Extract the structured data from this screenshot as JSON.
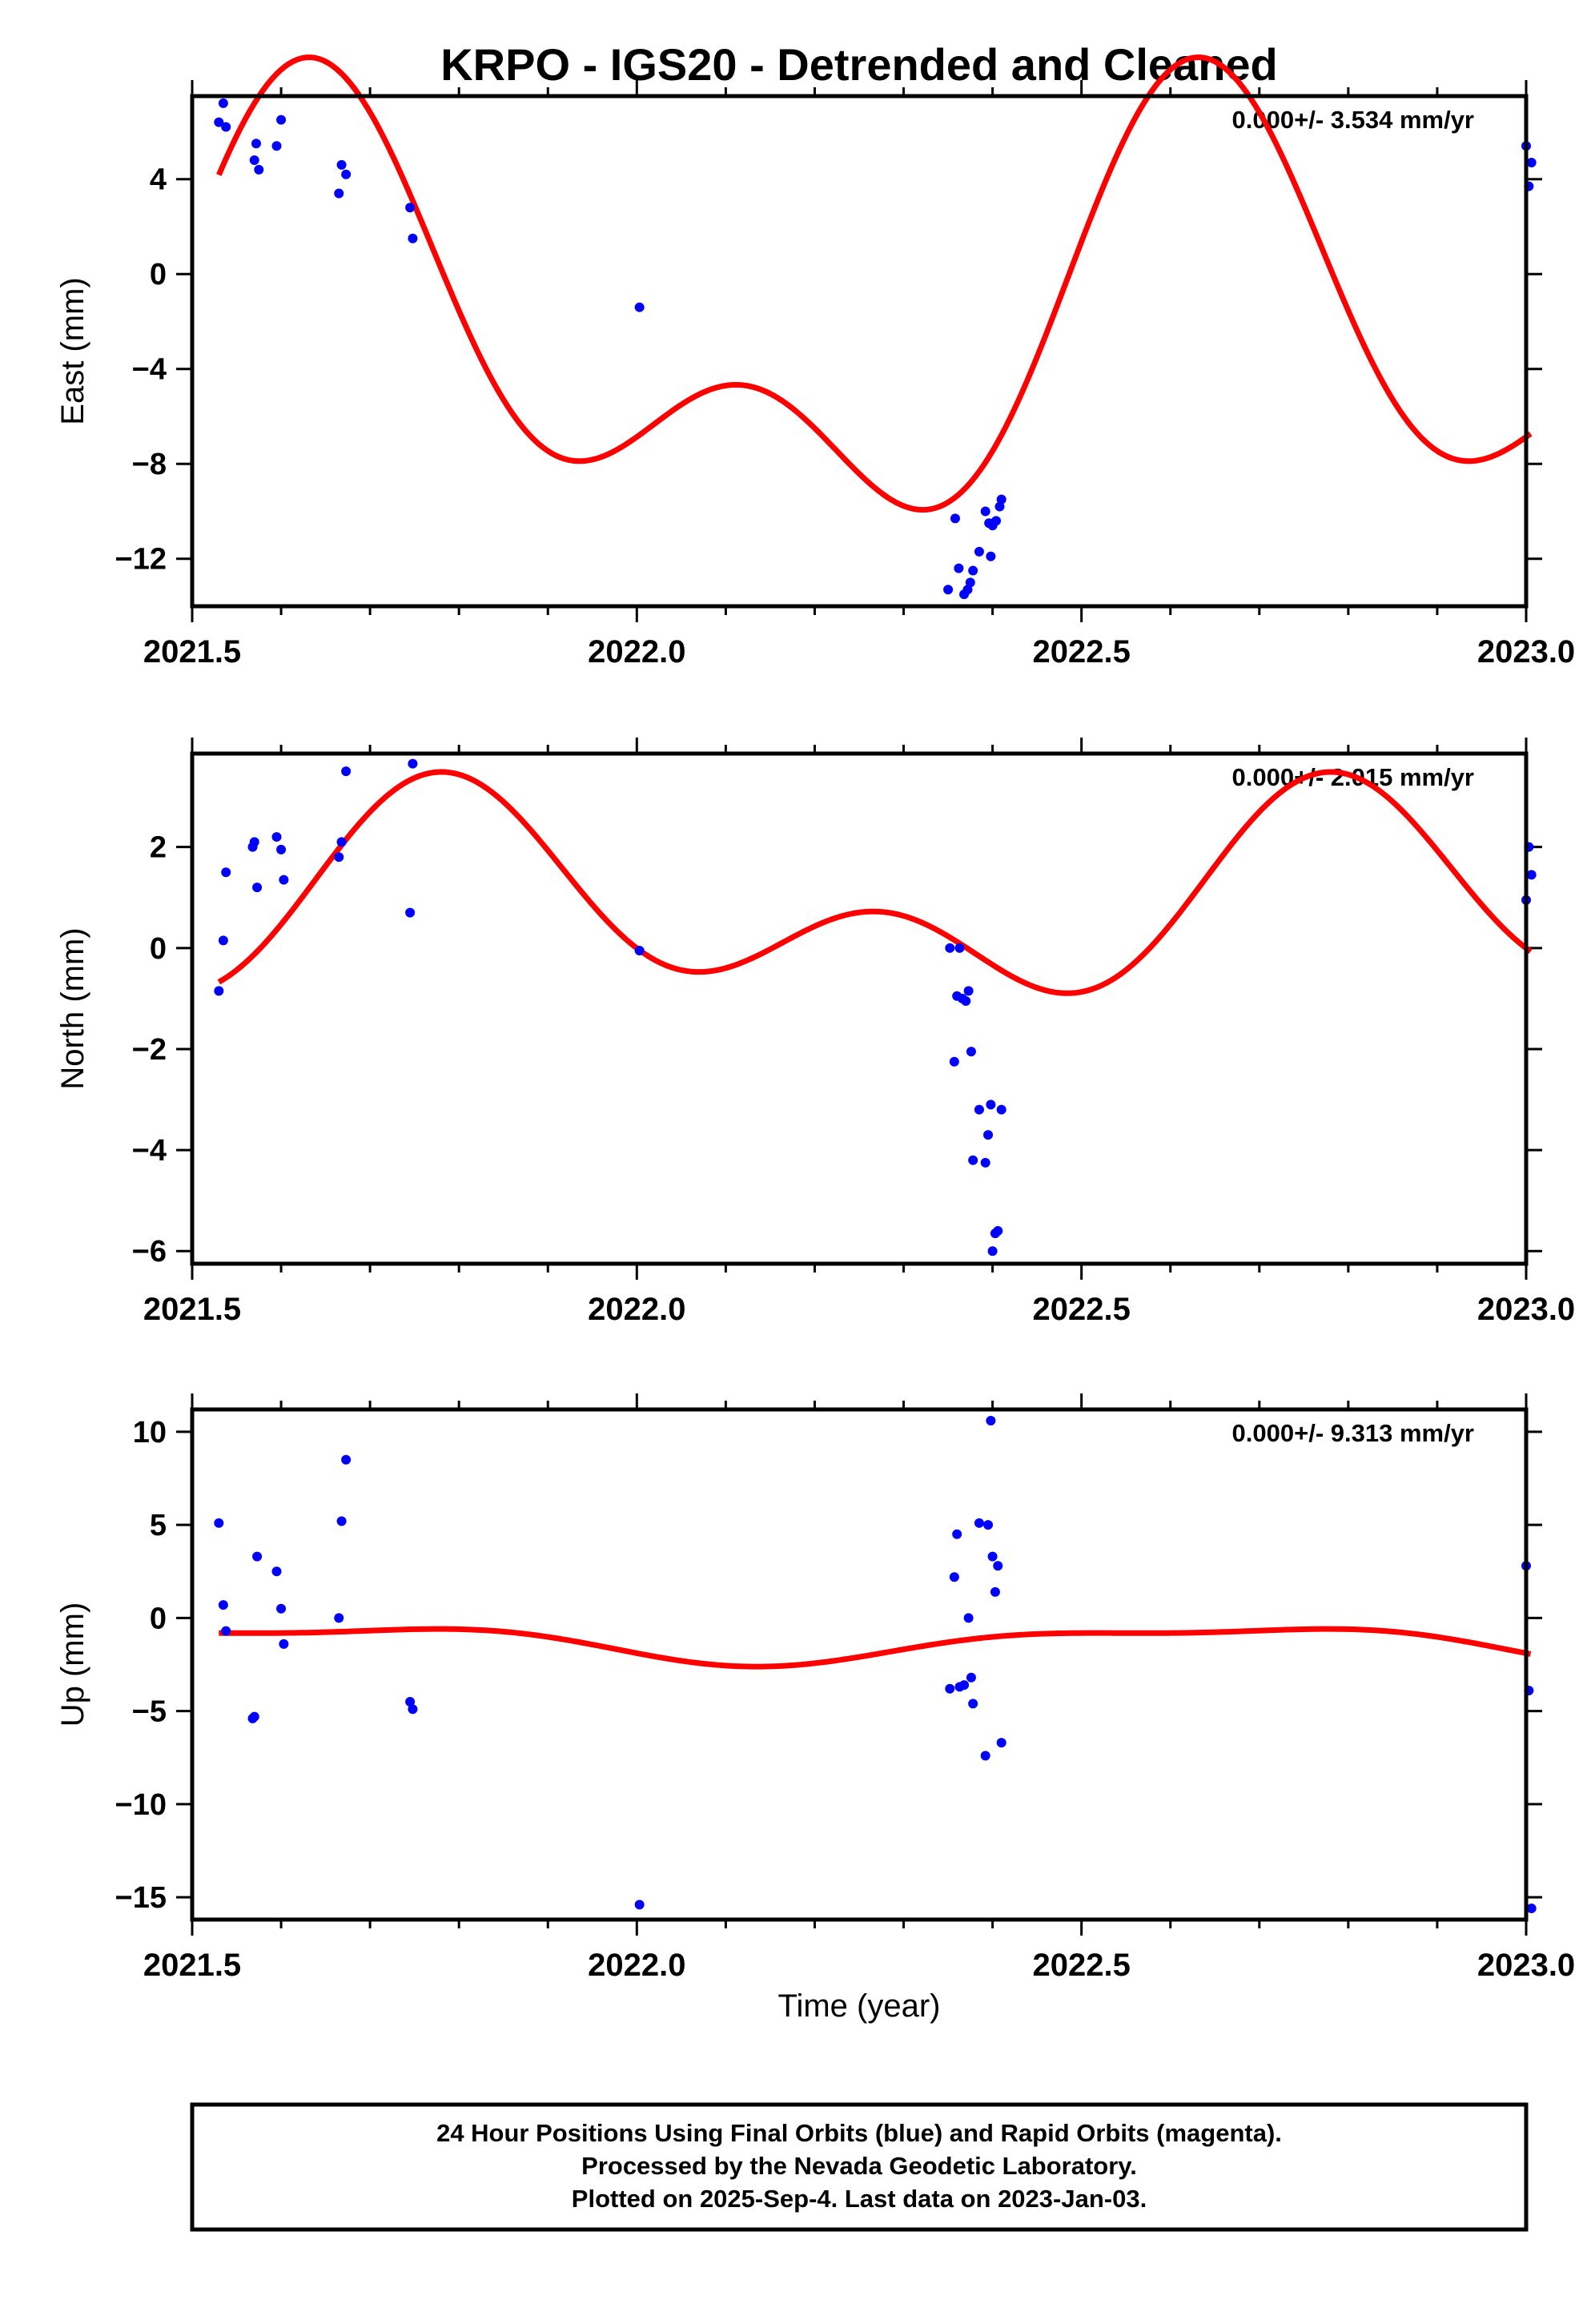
{
  "title": "KRPO - IGS20 - Detrended and Cleaned",
  "x_axis_label": "Time (year)",
  "footer": [
    "24 Hour Positions Using Final Orbits (blue) and Rapid Orbits (magenta).",
    "Processed by the Nevada Geodetic Laboratory.",
    "Plotted on 2025-Sep-4. Last data on 2023-Jan-03."
  ],
  "colors": {
    "points": "#0000ff",
    "model": "#ff0000",
    "axes": "#000000"
  },
  "chart_data": [
    {
      "type": "scatter",
      "panel": "east",
      "ylabel": "East (mm)",
      "rate_label": "0.000+/- 3.534 mm/yr",
      "xlim": [
        2021.5,
        2023.0
      ],
      "ylim": [
        -14,
        7.5
      ],
      "xticks": [
        2021.5,
        2022.0,
        2022.5,
        2023.0
      ],
      "xtick_labels": [
        "2021.5",
        "2022.0",
        "2022.5",
        "2023.0"
      ],
      "yticks": [
        4,
        0,
        -4,
        -8,
        -12
      ],
      "ytick_labels": [
        "4",
        "0",
        "−4",
        "−8",
        "−12"
      ],
      "grid": false,
      "points": [
        [
          2021.53,
          6.4
        ],
        [
          2021.535,
          7.2
        ],
        [
          2021.538,
          6.2
        ],
        [
          2021.57,
          4.8
        ],
        [
          2021.572,
          5.5
        ],
        [
          2021.575,
          4.4
        ],
        [
          2021.595,
          5.4
        ],
        [
          2021.6,
          6.5
        ],
        [
          2021.665,
          3.4
        ],
        [
          2021.668,
          4.6
        ],
        [
          2021.673,
          4.2
        ],
        [
          2021.745,
          2.8
        ],
        [
          2021.748,
          1.5
        ],
        [
          2022.003,
          -1.4
        ],
        [
          2022.35,
          -13.3
        ],
        [
          2022.358,
          -10.3
        ],
        [
          2022.362,
          -12.4
        ],
        [
          2022.368,
          -13.5
        ],
        [
          2022.372,
          -13.3
        ],
        [
          2022.375,
          -13.0
        ],
        [
          2022.378,
          -12.5
        ],
        [
          2022.385,
          -11.7
        ],
        [
          2022.392,
          -10.0
        ],
        [
          2022.396,
          -10.5
        ],
        [
          2022.398,
          -11.9
        ],
        [
          2022.4,
          -10.6
        ],
        [
          2022.404,
          -10.4
        ],
        [
          2022.408,
          -9.8
        ],
        [
          2022.41,
          -9.5
        ],
        [
          2023.0,
          5.4
        ],
        [
          2023.003,
          3.7
        ],
        [
          2023.006,
          4.7
        ]
      ],
      "model": {
        "t_start": 2021.53,
        "t_end": 2023.005,
        "offset": -2.75,
        "annual": {
          "a": 7.0,
          "phase_year": 2021.4
        },
        "semiannual": {
          "a": 4.95,
          "phase_year": 2021.5
        }
      }
    },
    {
      "type": "scatter",
      "panel": "north",
      "ylabel": "North (mm)",
      "rate_label": "0.000+/- 2.015 mm/yr",
      "xlim": [
        2021.5,
        2023.0
      ],
      "ylim": [
        -6.25,
        3.85
      ],
      "xticks": [
        2021.5,
        2022.0,
        2022.5,
        2023.0
      ],
      "xtick_labels": [
        "2021.5",
        "2022.0",
        "2022.5",
        "2023.0"
      ],
      "yticks": [
        2,
        0,
        -2,
        -4,
        -6
      ],
      "ytick_labels": [
        "2",
        "0",
        "−2",
        "−4",
        "−6"
      ],
      "grid": false,
      "points": [
        [
          2021.53,
          -0.85
        ],
        [
          2021.535,
          0.15
        ],
        [
          2021.538,
          1.5
        ],
        [
          2021.568,
          2.0
        ],
        [
          2021.57,
          2.1
        ],
        [
          2021.573,
          1.2
        ],
        [
          2021.595,
          2.2
        ],
        [
          2021.6,
          1.95
        ],
        [
          2021.603,
          1.35
        ],
        [
          2021.665,
          1.8
        ],
        [
          2021.668,
          2.1
        ],
        [
          2021.673,
          3.5
        ],
        [
          2021.745,
          0.7
        ],
        [
          2021.748,
          3.65
        ],
        [
          2022.003,
          -0.05
        ],
        [
          2022.352,
          0.0
        ],
        [
          2022.357,
          -2.25
        ],
        [
          2022.36,
          -0.95
        ],
        [
          2022.363,
          0.0
        ],
        [
          2022.366,
          -1.0
        ],
        [
          2022.37,
          -1.05
        ],
        [
          2022.373,
          -0.85
        ],
        [
          2022.376,
          -2.05
        ],
        [
          2022.378,
          -4.2
        ],
        [
          2022.385,
          -3.2
        ],
        [
          2022.392,
          -4.25
        ],
        [
          2022.395,
          -3.7
        ],
        [
          2022.398,
          -3.1
        ],
        [
          2022.4,
          -6.0
        ],
        [
          2022.403,
          -5.65
        ],
        [
          2022.406,
          -5.6
        ],
        [
          2022.41,
          -3.2
        ],
        [
          2023.0,
          0.95
        ],
        [
          2023.003,
          2.0
        ],
        [
          2023.006,
          1.45
        ]
      ],
      "model": {
        "t_start": 2021.53,
        "t_end": 2023.005,
        "offset": 0.8,
        "annual": {
          "a": 1.4,
          "phase_year": 2021.55
        },
        "semiannual": {
          "a": 1.3,
          "phase_year": 2021.65
        }
      }
    },
    {
      "type": "scatter",
      "panel": "up",
      "ylabel": "Up (mm)",
      "x_axis_label": "Time (year)",
      "rate_label": "0.000+/- 9.313 mm/yr",
      "xlim": [
        2021.5,
        2023.0
      ],
      "ylim": [
        -16.2,
        11.2
      ],
      "xticks": [
        2021.5,
        2022.0,
        2022.5,
        2023.0
      ],
      "xtick_labels": [
        "2021.5",
        "2022.0",
        "2022.5",
        "2023.0"
      ],
      "yticks": [
        10,
        5,
        0,
        -5,
        -10,
        -15
      ],
      "ytick_labels": [
        "10",
        "5",
        "0",
        "−5",
        "−10",
        "−15"
      ],
      "grid": false,
      "points": [
        [
          2021.53,
          5.1
        ],
        [
          2021.535,
          0.7
        ],
        [
          2021.538,
          -0.7
        ],
        [
          2021.568,
          -5.4
        ],
        [
          2021.57,
          -5.3
        ],
        [
          2021.573,
          3.3
        ],
        [
          2021.595,
          2.5
        ],
        [
          2021.6,
          0.5
        ],
        [
          2021.603,
          -1.4
        ],
        [
          2021.665,
          0.0
        ],
        [
          2021.668,
          5.2
        ],
        [
          2021.673,
          8.5
        ],
        [
          2021.745,
          -4.5
        ],
        [
          2021.748,
          -4.9
        ],
        [
          2022.003,
          -15.4
        ],
        [
          2022.352,
          -3.8
        ],
        [
          2022.357,
          2.2
        ],
        [
          2022.36,
          4.5
        ],
        [
          2022.363,
          -3.7
        ],
        [
          2022.368,
          -3.6
        ],
        [
          2022.373,
          0.0
        ],
        [
          2022.376,
          -3.2
        ],
        [
          2022.378,
          -4.6
        ],
        [
          2022.385,
          5.1
        ],
        [
          2022.392,
          -7.4
        ],
        [
          2022.395,
          5.0
        ],
        [
          2022.398,
          10.6
        ],
        [
          2022.4,
          3.3
        ],
        [
          2022.403,
          1.4
        ],
        [
          2022.406,
          2.8
        ],
        [
          2022.41,
          -6.7
        ],
        [
          2023.0,
          2.8
        ],
        [
          2023.003,
          -3.9
        ],
        [
          2023.006,
          -15.6
        ]
      ],
      "model": {
        "t_start": 2021.53,
        "t_end": 2023.005,
        "offset": -1.35,
        "annual": {
          "a": 0.92,
          "phase_year": 2021.4
        },
        "semiannual": {
          "a": 0.35,
          "phase_year": 2021.75
        }
      }
    }
  ]
}
